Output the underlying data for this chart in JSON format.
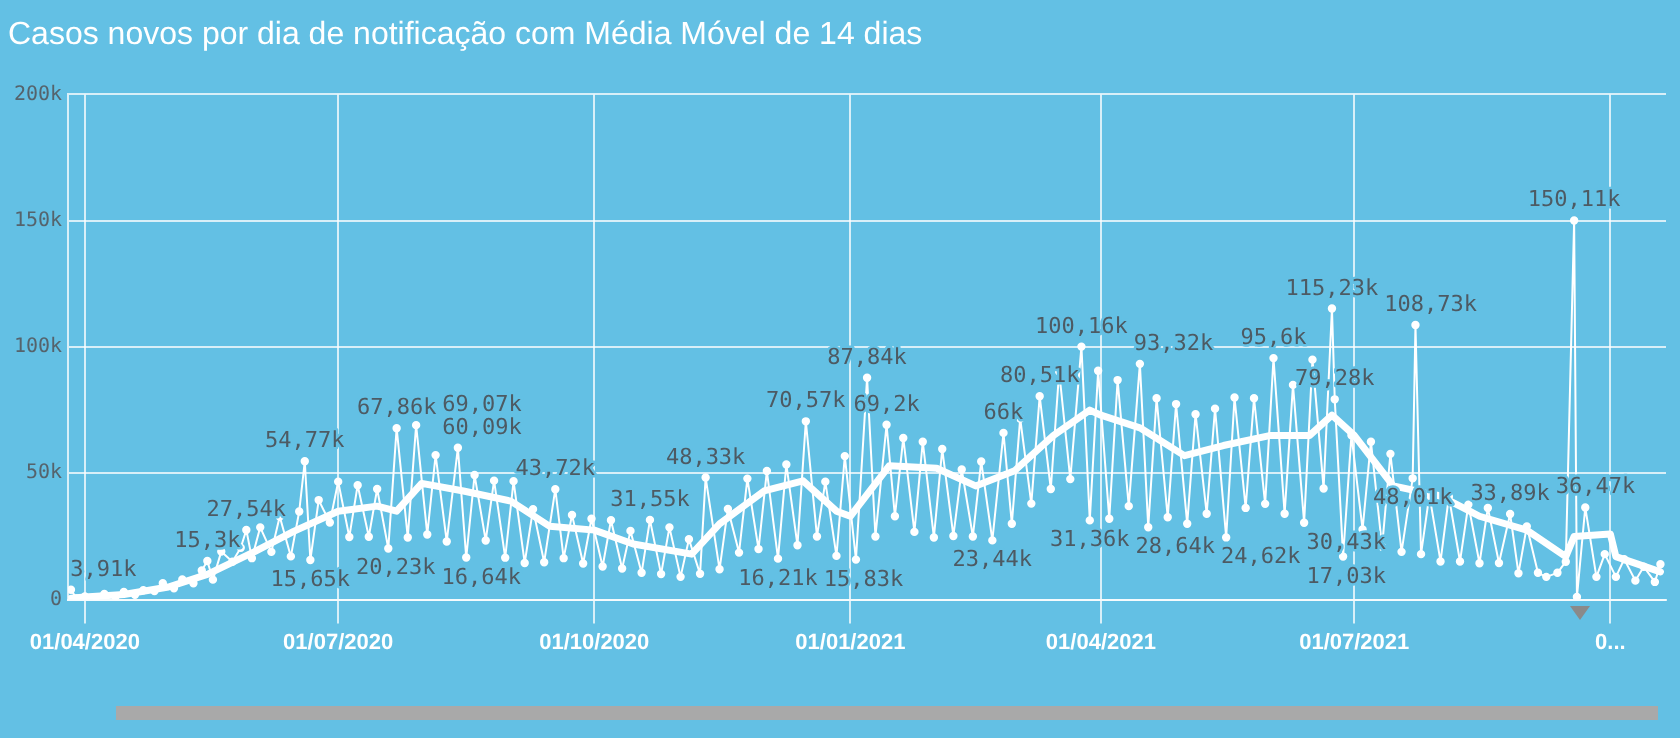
{
  "chart_data": {
    "type": "line",
    "title": "Casos novos por dia de notificação com Média Móvel de 14 dias",
    "xlim": [
      "2020-03-26",
      "2021-10-21"
    ],
    "xticks": [
      {
        "value": "2020-04-01",
        "label": "01/04/2020"
      },
      {
        "value": "2020-07-01",
        "label": "01/07/2020"
      },
      {
        "value": "2020-10-01",
        "label": "01/10/2020"
      },
      {
        "value": "2021-01-01",
        "label": "01/01/2021"
      },
      {
        "value": "2021-04-01",
        "label": "01/04/2021"
      },
      {
        "value": "2021-07-01",
        "label": "01/07/2021"
      },
      {
        "value": "2021-10-01",
        "label": "0..."
      }
    ],
    "ylim": [
      0,
      200
    ],
    "yticks": [
      0,
      {
        "value": 50,
        "label": "50k"
      },
      {
        "value": 100,
        "label": "100k"
      },
      {
        "value": 150,
        "label": "150k"
      },
      {
        "value": 200,
        "label": "200k"
      }
    ],
    "grid": true,
    "legend": false,
    "series": [
      {
        "type": "line",
        "color": "#ffffff",
        "marker": "circle",
        "line_style": "solid",
        "x": [
          "2020-03-27",
          "2020-03-29",
          "2020-04-01",
          "2020-04-05",
          "2020-04-08",
          "2020-04-12",
          "2020-04-15",
          "2020-04-19",
          "2020-04-22",
          "2020-04-26",
          "2020-04-29",
          "2020-05-03",
          "2020-05-06",
          "2020-05-10",
          "2020-05-13",
          "2020-05-15",
          "2020-05-17",
          "2020-05-20",
          "2020-05-24",
          "2020-05-27",
          "2020-05-29",
          "2020-05-31",
          "2020-06-03",
          "2020-06-07",
          "2020-06-10",
          "2020-06-14",
          "2020-06-17",
          "2020-06-19",
          "2020-06-21",
          "2020-06-24",
          "2020-06-28",
          "2020-07-01",
          "2020-07-05",
          "2020-07-08",
          "2020-07-12",
          "2020-07-15",
          "2020-07-19",
          "2020-07-22",
          "2020-07-26",
          "2020-07-29",
          "2020-08-02",
          "2020-08-05",
          "2020-08-09",
          "2020-08-13",
          "2020-08-16",
          "2020-08-19",
          "2020-08-23",
          "2020-08-26",
          "2020-08-30",
          "2020-09-02",
          "2020-09-06",
          "2020-09-09",
          "2020-09-13",
          "2020-09-17",
          "2020-09-20",
          "2020-09-23",
          "2020-09-27",
          "2020-09-30",
          "2020-10-04",
          "2020-10-07",
          "2020-10-11",
          "2020-10-14",
          "2020-10-18",
          "2020-10-21",
          "2020-10-25",
          "2020-10-28",
          "2020-11-01",
          "2020-11-04",
          "2020-11-08",
          "2020-11-10",
          "2020-11-15",
          "2020-11-18",
          "2020-11-22",
          "2020-11-25",
          "2020-11-29",
          "2020-12-02",
          "2020-12-06",
          "2020-12-09",
          "2020-12-13",
          "2020-12-16",
          "2020-12-20",
          "2020-12-23",
          "2020-12-27",
          "2020-12-30",
          "2021-01-03",
          "2021-01-07",
          "2021-01-10",
          "2021-01-14",
          "2021-01-17",
          "2021-01-20",
          "2021-01-24",
          "2021-01-27",
          "2021-01-31",
          "2021-02-03",
          "2021-02-07",
          "2021-02-10",
          "2021-02-14",
          "2021-02-17",
          "2021-02-21",
          "2021-02-25",
          "2021-02-28",
          "2021-03-03",
          "2021-03-07",
          "2021-03-10",
          "2021-03-14",
          "2021-03-17",
          "2021-03-21",
          "2021-03-25",
          "2021-03-28",
          "2021-03-31",
          "2021-04-04",
          "2021-04-07",
          "2021-04-11",
          "2021-04-15",
          "2021-04-18",
          "2021-04-21",
          "2021-04-25",
          "2021-04-28",
          "2021-05-02",
          "2021-05-05",
          "2021-05-09",
          "2021-05-12",
          "2021-05-16",
          "2021-05-19",
          "2021-05-23",
          "2021-05-26",
          "2021-05-30",
          "2021-06-02",
          "2021-06-06",
          "2021-06-09",
          "2021-06-13",
          "2021-06-16",
          "2021-06-20",
          "2021-06-23",
          "2021-06-24",
          "2021-06-27",
          "2021-06-30",
          "2021-07-04",
          "2021-07-07",
          "2021-07-11",
          "2021-07-14",
          "2021-07-18",
          "2021-07-22",
          "2021-07-23",
          "2021-07-25",
          "2021-07-28",
          "2021-08-01",
          "2021-08-04",
          "2021-08-08",
          "2021-08-11",
          "2021-08-15",
          "2021-08-18",
          "2021-08-22",
          "2021-08-26",
          "2021-08-29",
          "2021-09-01",
          "2021-09-05",
          "2021-09-08",
          "2021-09-12",
          "2021-09-15",
          "2021-09-18",
          "2021-09-19",
          "2021-09-22",
          "2021-09-26",
          "2021-09-29",
          "2021-10-03",
          "2021-10-06",
          "2021-10-10",
          "2021-10-13",
          "2021-10-17",
          "2021-10-19"
        ],
        "values": [
          3.91,
          0.5,
          1.2,
          0.9,
          2.2,
          1.1,
          3.0,
          1.9,
          3.7,
          3.4,
          6.5,
          4.5,
          8.0,
          6.5,
          11.5,
          15.3,
          7.9,
          19.0,
          15.0,
          20.5,
          27.54,
          16.4,
          28.6,
          18.9,
          32.9,
          17.1,
          34.9,
          54.77,
          15.65,
          39.4,
          30.5,
          46.7,
          24.8,
          45.3,
          24.9,
          43.8,
          20.23,
          67.86,
          24.6,
          69.07,
          25.8,
          57.2,
          23.0,
          60.09,
          16.64,
          49.3,
          23.4,
          47.1,
          16.6,
          46.9,
          14.5,
          35.8,
          14.8,
          43.72,
          16.4,
          33.5,
          14.3,
          32.0,
          13.1,
          31.4,
          12.3,
          27.2,
          10.6,
          31.55,
          10.1,
          28.6,
          9.0,
          23.9,
          10.2,
          48.33,
          12.0,
          35.9,
          18.6,
          47.9,
          20.0,
          50.9,
          16.21,
          53.5,
          21.5,
          70.57,
          25.0,
          46.7,
          17.3,
          56.8,
          15.83,
          87.84,
          25.0,
          69.2,
          33.0,
          64.0,
          26.8,
          62.5,
          24.6,
          59.6,
          25.2,
          51.5,
          25.0,
          54.7,
          23.44,
          66.0,
          30.0,
          71.7,
          38.0,
          80.51,
          43.8,
          90.3,
          47.7,
          100.16,
          31.36,
          90.6,
          32.0,
          86.9,
          37.0,
          93.32,
          28.64,
          79.7,
          32.6,
          77.4,
          30.0,
          73.4,
          34.0,
          75.6,
          24.62,
          80.0,
          36.3,
          79.7,
          37.9,
          95.6,
          34.0,
          85.0,
          30.43,
          95.0,
          44.0,
          115.23,
          79.28,
          17.03,
          65.1,
          27.8,
          62.5,
          20.9,
          57.7,
          18.9,
          48.01,
          108.73,
          18.0,
          41.4,
          15.1,
          40.7,
          15.1,
          37.6,
          14.4,
          36.3,
          14.5,
          33.89,
          10.4,
          29.0,
          10.6,
          9.0,
          10.6,
          15.0,
          150.11,
          1.0,
          36.47,
          9.0,
          18.0,
          9.0,
          16.0,
          7.5,
          13.0,
          7.0,
          14.0
        ]
      },
      {
        "type": "line",
        "color": "#ffffff",
        "marker": "none",
        "line_style": "solid",
        "x": [
          "2020-03-27",
          "2020-04-01",
          "2020-04-15",
          "2020-05-01",
          "2020-05-15",
          "2020-06-01",
          "2020-06-15",
          "2020-07-01",
          "2020-07-15",
          "2020-07-22",
          "2020-07-31",
          "2020-08-15",
          "2020-09-01",
          "2020-09-15",
          "2020-10-01",
          "2020-10-15",
          "2020-11-05",
          "2020-11-15",
          "2020-12-01",
          "2020-12-15",
          "2020-12-27",
          "2021-01-01",
          "2021-01-15",
          "2021-02-01",
          "2021-02-15",
          "2021-03-01",
          "2021-03-15",
          "2021-03-28",
          "2021-04-01",
          "2021-04-15",
          "2021-05-01",
          "2021-05-15",
          "2021-06-01",
          "2021-06-15",
          "2021-06-23",
          "2021-07-01",
          "2021-07-15",
          "2021-08-01",
          "2021-08-15",
          "2021-09-01",
          "2021-09-15",
          "2021-09-18",
          "2021-10-01",
          "2021-10-03",
          "2021-10-19"
        ],
        "values": [
          0.5,
          1,
          2,
          5,
          10,
          19,
          27,
          35,
          37,
          35,
          46,
          43,
          39,
          29,
          27.5,
          22,
          18,
          30,
          43,
          47,
          35,
          33,
          53,
          52,
          45,
          51,
          65,
          75,
          73,
          68,
          57,
          61,
          65,
          65,
          73,
          65,
          45,
          41,
          33,
          27.5,
          17,
          25,
          26,
          17,
          11
        ]
      }
    ],
    "annotations": [
      {
        "text": "3,91k",
        "x": "2020-03-27",
        "y": 3.91
      },
      {
        "text": "15,3k",
        "x": "2020-05-15",
        "y": 15.3
      },
      {
        "text": "27,54k",
        "x": "2020-05-29",
        "y": 27.54
      },
      {
        "text": "54,77k",
        "x": "2020-06-19",
        "y": 54.77
      },
      {
        "text": "15,65k",
        "x": "2020-06-21",
        "y": 15.65
      },
      {
        "text": "20,23k",
        "x": "2020-07-19",
        "y": 20.23
      },
      {
        "text": "67,86k",
        "x": "2020-07-22",
        "y": 67.86
      },
      {
        "text": "69,07k",
        "x": "2020-07-29",
        "y": 69.07
      },
      {
        "text": "60,09k",
        "x": "2020-08-13",
        "y": 60.09
      },
      {
        "text": "16,64k",
        "x": "2020-08-16",
        "y": 16.64
      },
      {
        "text": "43,72k",
        "x": "2020-09-17",
        "y": 43.72
      },
      {
        "text": "31,55k",
        "x": "2020-10-21",
        "y": 31.55
      },
      {
        "text": "48,33k",
        "x": "2020-11-10",
        "y": 48.33
      },
      {
        "text": "16,21k",
        "x": "2020-12-06",
        "y": 16.21
      },
      {
        "text": "70,57k",
        "x": "2020-12-16",
        "y": 70.57
      },
      {
        "text": "15,83k",
        "x": "2021-01-03",
        "y": 15.83
      },
      {
        "text": "87,84k",
        "x": "2021-01-07",
        "y": 87.84
      },
      {
        "text": "69,2k",
        "x": "2021-01-14",
        "y": 69.2
      },
      {
        "text": "23,44k",
        "x": "2021-02-21",
        "y": 23.44
      },
      {
        "text": "66k",
        "x": "2021-02-25",
        "y": 66.0
      },
      {
        "text": "80,51k",
        "x": "2021-03-10",
        "y": 80.51
      },
      {
        "text": "100,16k",
        "x": "2021-03-25",
        "y": 100.16
      },
      {
        "text": "31,36k",
        "x": "2021-03-28",
        "y": 31.36
      },
      {
        "text": "93,32k",
        "x": "2021-04-15",
        "y": 93.32
      },
      {
        "text": "28,64k",
        "x": "2021-04-18",
        "y": 28.64
      },
      {
        "text": "24,62k",
        "x": "2021-05-16",
        "y": 24.62
      },
      {
        "text": "95,6k",
        "x": "2021-06-02",
        "y": 95.6
      },
      {
        "text": "30,43k",
        "x": "2021-06-13",
        "y": 30.43
      },
      {
        "text": "115,23k",
        "x": "2021-06-23",
        "y": 115.23
      },
      {
        "text": "79,28k",
        "x": "2021-06-24",
        "y": 79.28
      },
      {
        "text": "17,03k",
        "x": "2021-06-27",
        "y": 17.03
      },
      {
        "text": "48,01k",
        "x": "2021-07-22",
        "y": 48.01
      },
      {
        "text": "108,73k",
        "x": "2021-07-23",
        "y": 108.73
      },
      {
        "text": "33,89k",
        "x": "2021-08-26",
        "y": 33.89
      },
      {
        "text": "150,11k",
        "x": "2021-09-18",
        "y": 150.11
      },
      {
        "text": "36,47k",
        "x": "2021-09-22",
        "y": 36.47
      }
    ]
  }
}
